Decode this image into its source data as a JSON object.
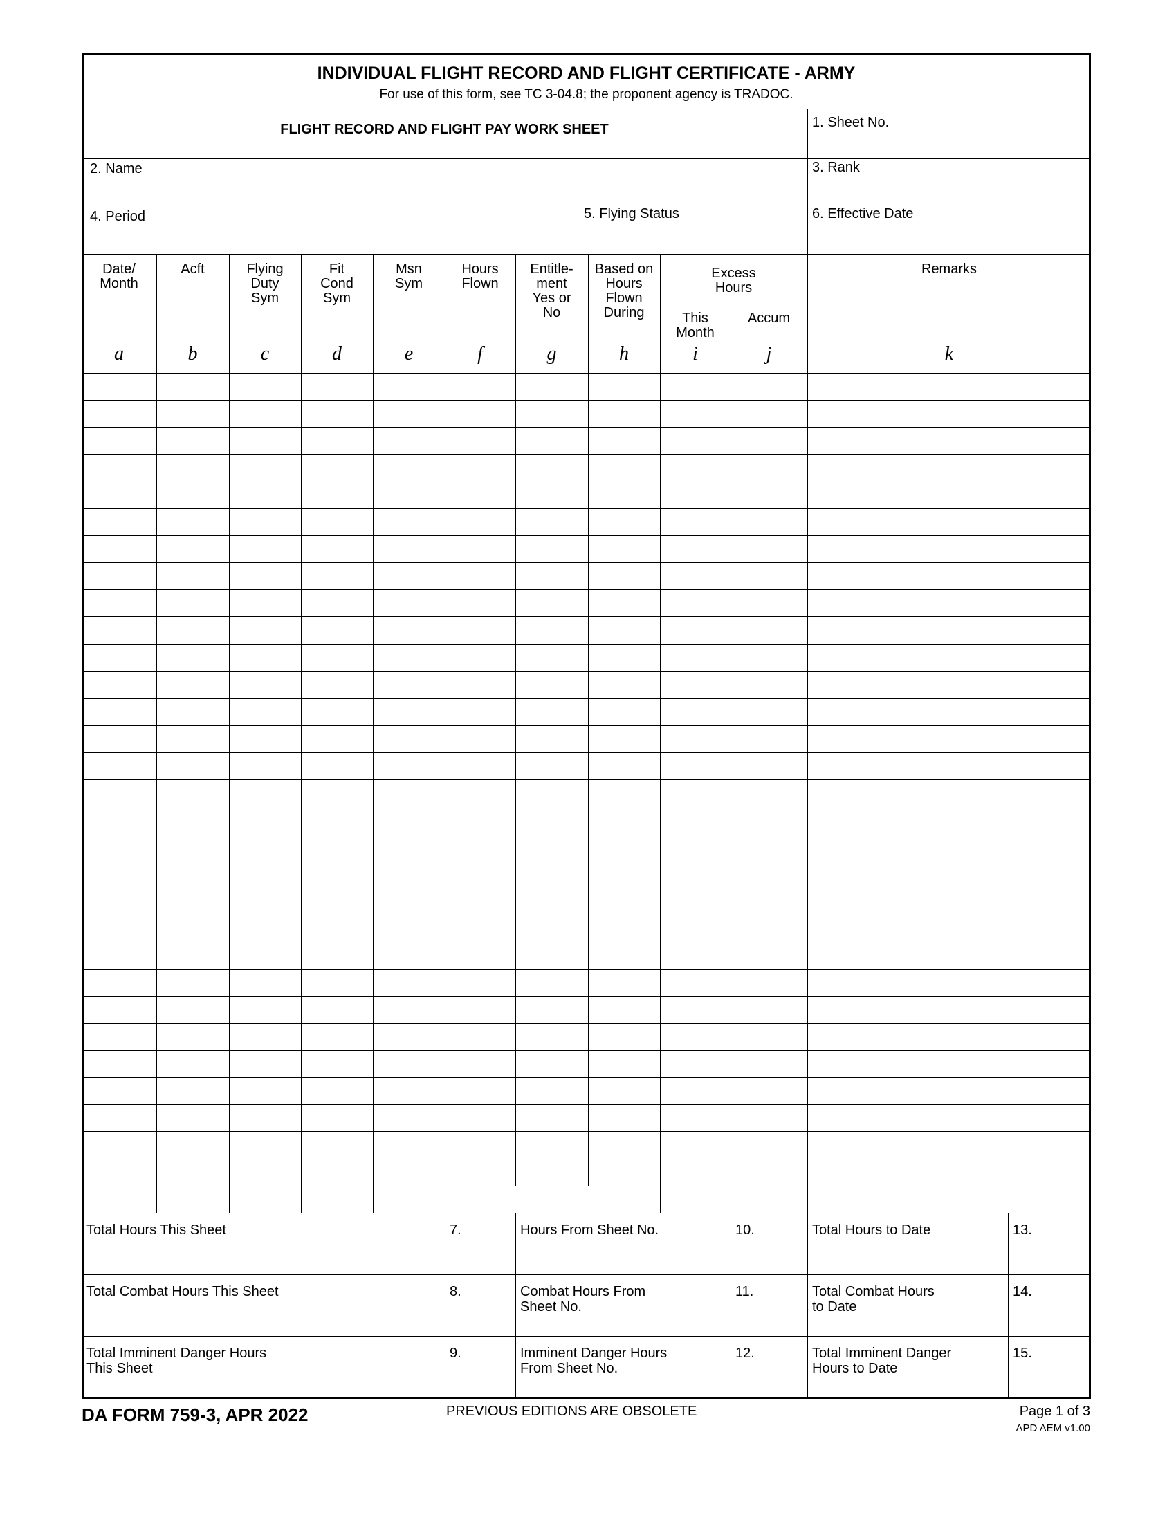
{
  "title": "INDIVIDUAL FLIGHT RECORD AND FLIGHT CERTIFICATE - ARMY",
  "subtitle": "For use of this form, see TC 3-04.8; the proponent agency is TRADOC.",
  "worksheet_title": "FLIGHT RECORD AND FLIGHT PAY WORK SHEET",
  "fields": {
    "sheet_no": "1. Sheet No.",
    "name": "2. Name",
    "rank": "3. Rank",
    "period": "4. Period",
    "flying_status": "5. Flying Status",
    "effective_date": "6. Effective Date"
  },
  "columns": [
    {
      "label": "Date/\nMonth",
      "letter": "a"
    },
    {
      "label": "Acft",
      "letter": "b"
    },
    {
      "label": "Flying\nDuty\nSym",
      "letter": "c"
    },
    {
      "label": "Fit\nCond\nSym",
      "letter": "d"
    },
    {
      "label": "Msn\nSym",
      "letter": "e"
    },
    {
      "label": "Hours\nFlown",
      "letter": "f"
    },
    {
      "label": "Entitle-\nment\nYes or\nNo",
      "letter": "g"
    },
    {
      "label": "Based on\nHours\nFlown\nDuring",
      "letter": "h"
    },
    {
      "label": "This\nMonth",
      "letter": "i"
    },
    {
      "label": "Accum",
      "letter": "j"
    },
    {
      "label": "Remarks",
      "letter": "k"
    }
  ],
  "excess_hours": "Excess\nHours",
  "totals": [
    [
      "Total Hours This Sheet",
      "7.",
      "Hours From Sheet No.",
      "10.",
      "Total Hours to Date",
      "13."
    ],
    [
      "Total Combat Hours This Sheet",
      "8.",
      "Combat Hours From\nSheet No.",
      "11.",
      "Total Combat Hours\nto Date",
      "14."
    ],
    [
      "Total Imminent Danger Hours\nThis Sheet",
      "9.",
      "Imminent Danger Hours\nFrom Sheet No.",
      "12.",
      "Total Imminent Danger\nHours to Date",
      "15."
    ]
  ],
  "footer": {
    "form_id": "DA FORM 759-3, APR 2022",
    "obsolete": "PREVIOUS EDITIONS ARE OBSOLETE",
    "page": "Page 1 of 3",
    "version": "APD AEM v1.00"
  }
}
